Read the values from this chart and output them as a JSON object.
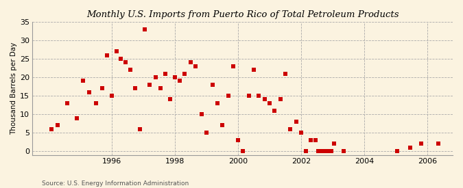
{
  "title": "Monthly U.S. Imports from Puerto Rico of Total Petroleum Products",
  "ylabel": "Thousand Barrels per Day",
  "source": "Source: U.S. Energy Information Administration",
  "background_color": "#FBF3E0",
  "marker_color": "#CC0000",
  "xlim": [
    1993.5,
    2006.8
  ],
  "ylim": [
    -1,
    35
  ],
  "yticks": [
    0,
    5,
    10,
    15,
    20,
    25,
    30,
    35
  ],
  "xticks": [
    1996,
    1998,
    2000,
    2002,
    2004,
    2006
  ],
  "x_vals": [
    1994.1,
    1994.3,
    1994.6,
    1994.9,
    1995.1,
    1995.3,
    1995.5,
    1995.7,
    1995.85,
    1996.0,
    1996.15,
    1996.3,
    1996.45,
    1996.6,
    1996.75,
    1996.9,
    1997.05,
    1997.2,
    1997.4,
    1997.55,
    1997.7,
    1997.85,
    1998.0,
    1998.15,
    1998.3,
    1998.5,
    1998.65,
    1998.85,
    1999.0,
    1999.2,
    1999.35,
    1999.5,
    1999.7,
    1999.85,
    2000.0,
    2000.15,
    2000.35,
    2000.5,
    2000.65,
    2000.85,
    2001.0,
    2001.15,
    2001.35,
    2001.5,
    2001.65,
    2001.85,
    2002.0,
    2002.15,
    2002.3,
    2002.45,
    2002.55,
    2002.65,
    2002.75,
    2002.85,
    2002.95,
    2003.05,
    2003.35,
    2005.05,
    2005.45,
    2005.8,
    2006.35
  ],
  "y_vals": [
    6,
    7,
    13,
    9,
    19,
    16,
    13,
    17,
    26,
    15,
    27,
    25,
    24,
    22,
    17,
    6,
    33,
    18,
    20,
    17,
    21,
    14,
    20,
    19,
    21,
    24,
    23,
    10,
    5,
    18,
    13,
    7,
    15,
    23,
    3,
    0,
    15,
    22,
    15,
    14,
    13,
    11,
    14,
    21,
    6,
    8,
    5,
    0,
    3,
    3,
    0,
    0,
    0,
    0,
    0,
    2,
    0,
    0,
    1,
    2,
    2
  ]
}
